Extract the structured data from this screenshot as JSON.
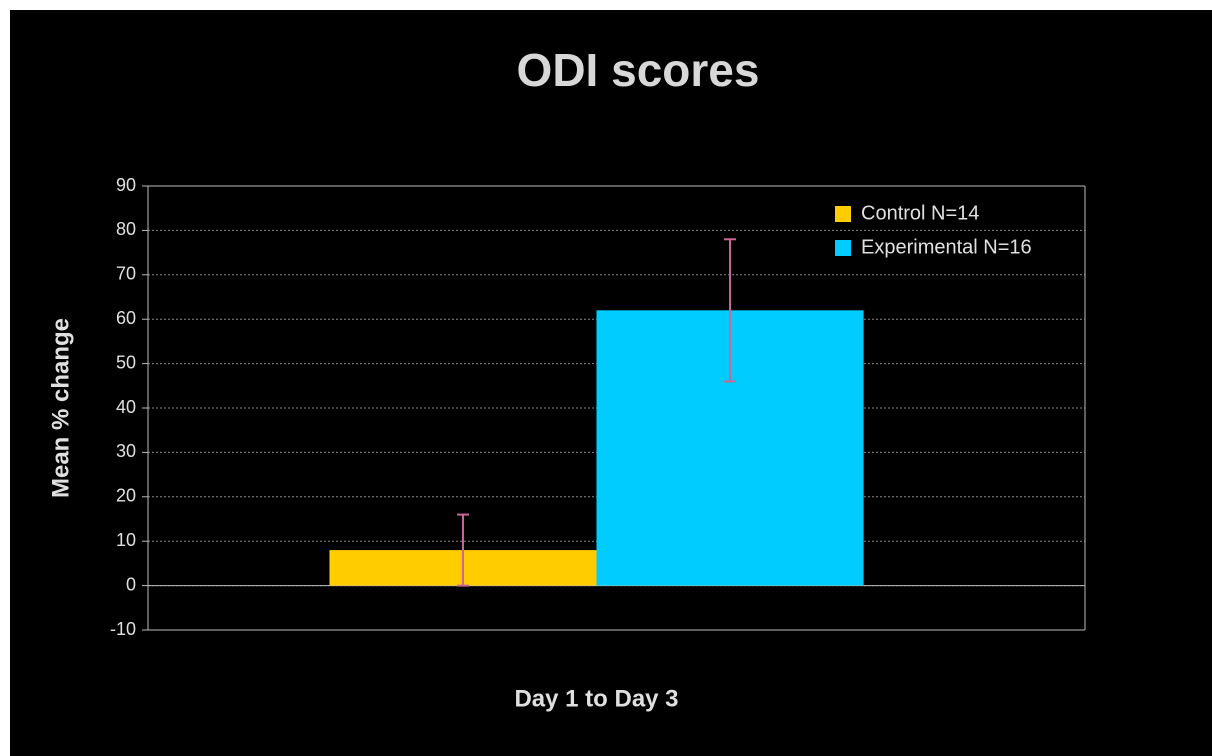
{
  "chart_data": {
    "type": "bar",
    "title": "ODI scores",
    "y_label": "Mean % change",
    "categories": [
      "Day 1 to Day 3"
    ],
    "series": [
      {
        "name": "Control N=14",
        "color": "#ffcc00",
        "values": [
          8
        ],
        "errors": [
          8
        ]
      },
      {
        "name": "Experimental N=16",
        "color": "#00ccff",
        "values": [
          62
        ],
        "errors": [
          16
        ]
      }
    ],
    "error_color": "#cc6699",
    "ylim": [
      -10,
      90
    ],
    "yticks": [
      -10,
      0,
      10,
      20,
      30,
      40,
      50,
      60,
      70,
      80,
      90
    ],
    "grid": true,
    "legend": "upper right"
  }
}
